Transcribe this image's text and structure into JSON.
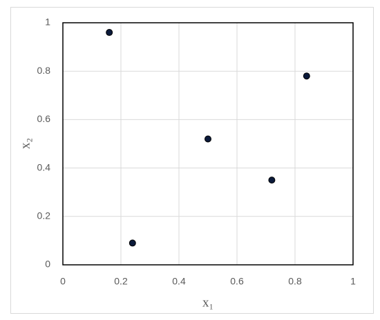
{
  "chart_data": {
    "type": "scatter",
    "x_label": "x₁",
    "y_label": "x₂",
    "series": [
      {
        "color": "#0b1a3a",
        "x": [
          0.16,
          0.24,
          0.5,
          0.72,
          0.84
        ],
        "values": [
          0.96,
          0.09,
          0.52,
          0.35,
          0.78
        ]
      }
    ],
    "xlim": [
      0,
      1
    ],
    "ylim": [
      0,
      1
    ],
    "xticks": [
      0,
      0.2,
      0.4,
      0.6,
      0.8,
      1
    ],
    "yticks": [
      0,
      0.2,
      0.4,
      0.6,
      0.8,
      1
    ],
    "grid": true
  }
}
